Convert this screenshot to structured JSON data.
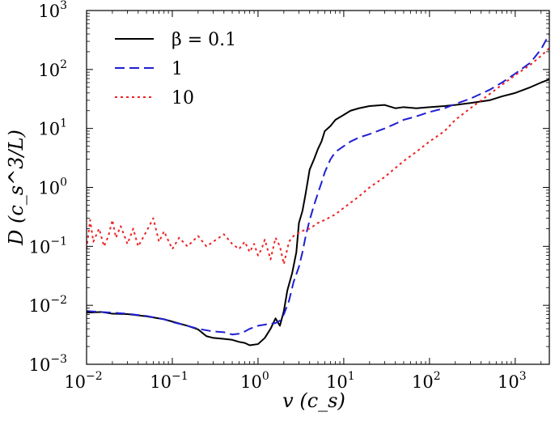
{
  "chart_data": {
    "type": "line",
    "title": "",
    "xscale": "log",
    "yscale": "log",
    "xlim": [
      0.01,
      2500
    ],
    "ylim": [
      0.001,
      1000
    ],
    "xlabel": "v (c_s)",
    "ylabel": "D (c_s^3/L)",
    "xticks": [
      {
        "base": "10",
        "exp": "−2",
        "value": 0.01
      },
      {
        "base": "10",
        "exp": "−1",
        "value": 0.1
      },
      {
        "base": "10",
        "exp": "0",
        "value": 1
      },
      {
        "base": "10",
        "exp": "1",
        "value": 10
      },
      {
        "base": "10",
        "exp": "2",
        "value": 100
      },
      {
        "base": "10",
        "exp": "3",
        "value": 1000
      }
    ],
    "yticks": [
      {
        "base": "10",
        "exp": "−3",
        "value": 0.001
      },
      {
        "base": "10",
        "exp": "−2",
        "value": 0.01
      },
      {
        "base": "10",
        "exp": "−1",
        "value": 0.1
      },
      {
        "base": "10",
        "exp": "0",
        "value": 1
      },
      {
        "base": "10",
        "exp": "1",
        "value": 10
      },
      {
        "base": "10",
        "exp": "2",
        "value": 100
      },
      {
        "base": "10",
        "exp": "3",
        "value": 1000
      }
    ],
    "legend_position": "top-left",
    "series": [
      {
        "name": "β = 0.1",
        "color": "#000000",
        "dash": "solid",
        "points": [
          [
            0.01,
            0.0075
          ],
          [
            0.015,
            0.0077
          ],
          [
            0.02,
            0.0072
          ],
          [
            0.03,
            0.0071
          ],
          [
            0.05,
            0.0065
          ],
          [
            0.08,
            0.0058
          ],
          [
            0.1,
            0.0053
          ],
          [
            0.15,
            0.0045
          ],
          [
            0.2,
            0.0039
          ],
          [
            0.25,
            0.003
          ],
          [
            0.3,
            0.0028
          ],
          [
            0.4,
            0.0027
          ],
          [
            0.5,
            0.0026
          ],
          [
            0.6,
            0.0024
          ],
          [
            0.7,
            0.0023
          ],
          [
            0.8,
            0.0021
          ],
          [
            1.0,
            0.0022
          ],
          [
            1.2,
            0.0028
          ],
          [
            1.4,
            0.004
          ],
          [
            1.6,
            0.006
          ],
          [
            1.8,
            0.0045
          ],
          [
            2.0,
            0.008
          ],
          [
            2.2,
            0.018
          ],
          [
            2.5,
            0.035
          ],
          [
            2.8,
            0.08
          ],
          [
            3.0,
            0.25
          ],
          [
            3.3,
            0.4
          ],
          [
            3.6,
            0.8
          ],
          [
            4.0,
            2.0
          ],
          [
            4.5,
            3.0
          ],
          [
            5.0,
            4.5
          ],
          [
            5.5,
            6.0
          ],
          [
            6.0,
            9.0
          ],
          [
            7.0,
            11.0
          ],
          [
            8.0,
            14.0
          ],
          [
            10,
            17.0
          ],
          [
            12,
            20.0
          ],
          [
            15,
            22.0
          ],
          [
            20,
            24.0
          ],
          [
            30,
            25.0
          ],
          [
            40,
            22.0
          ],
          [
            50,
            23.0
          ],
          [
            70,
            22.0
          ],
          [
            100,
            23.0
          ],
          [
            150,
            24.0
          ],
          [
            200,
            25.0
          ],
          [
            300,
            27.0
          ],
          [
            500,
            30.0
          ],
          [
            700,
            35.0
          ],
          [
            1000,
            40.0
          ],
          [
            1500,
            50.0
          ],
          [
            2000,
            60.0
          ],
          [
            2500,
            68.0
          ]
        ]
      },
      {
        "name": "1",
        "color": "#1f1fd4",
        "dash": "dashed",
        "points": [
          [
            0.01,
            0.008
          ],
          [
            0.02,
            0.0075
          ],
          [
            0.03,
            0.0072
          ],
          [
            0.05,
            0.0066
          ],
          [
            0.08,
            0.0058
          ],
          [
            0.1,
            0.0052
          ],
          [
            0.15,
            0.0045
          ],
          [
            0.2,
            0.004
          ],
          [
            0.3,
            0.0036
          ],
          [
            0.4,
            0.0035
          ],
          [
            0.5,
            0.0032
          ],
          [
            0.6,
            0.0033
          ],
          [
            0.7,
            0.0036
          ],
          [
            0.8,
            0.004
          ],
          [
            1.0,
            0.0045
          ],
          [
            1.3,
            0.0048
          ],
          [
            1.6,
            0.005
          ],
          [
            1.8,
            0.0055
          ],
          [
            2.0,
            0.007
          ],
          [
            2.3,
            0.012
          ],
          [
            2.6,
            0.025
          ],
          [
            3.0,
            0.045
          ],
          [
            3.3,
            0.08
          ],
          [
            3.6,
            0.15
          ],
          [
            4.0,
            0.28
          ],
          [
            4.5,
            0.5
          ],
          [
            5.0,
            0.8
          ],
          [
            5.5,
            1.2
          ],
          [
            6.0,
            1.8
          ],
          [
            7.0,
            3.0
          ],
          [
            8.0,
            4.0
          ],
          [
            10,
            5.0
          ],
          [
            12,
            6.0
          ],
          [
            15,
            7.0
          ],
          [
            20,
            8.0
          ],
          [
            30,
            10.0
          ],
          [
            40,
            12.0
          ],
          [
            50,
            14.0
          ],
          [
            70,
            16.0
          ],
          [
            100,
            19.0
          ],
          [
            150,
            22.0
          ],
          [
            200,
            26.0
          ],
          [
            300,
            32.0
          ],
          [
            500,
            45.0
          ],
          [
            700,
            60.0
          ],
          [
            1000,
            85.0
          ],
          [
            1500,
            130.0
          ],
          [
            2000,
            220.0
          ],
          [
            2500,
            400.0
          ]
        ]
      },
      {
        "name": "10",
        "color": "#ee2222",
        "dash": "dotted",
        "points": [
          [
            0.01,
            0.09
          ],
          [
            0.011,
            0.28
          ],
          [
            0.012,
            0.12
          ],
          [
            0.014,
            0.2
          ],
          [
            0.016,
            0.1
          ],
          [
            0.018,
            0.15
          ],
          [
            0.02,
            0.28
          ],
          [
            0.022,
            0.14
          ],
          [
            0.025,
            0.22
          ],
          [
            0.03,
            0.11
          ],
          [
            0.035,
            0.2
          ],
          [
            0.04,
            0.1
          ],
          [
            0.05,
            0.18
          ],
          [
            0.06,
            0.3
          ],
          [
            0.07,
            0.12
          ],
          [
            0.08,
            0.18
          ],
          [
            0.1,
            0.09
          ],
          [
            0.12,
            0.14
          ],
          [
            0.15,
            0.1
          ],
          [
            0.2,
            0.15
          ],
          [
            0.25,
            0.1
          ],
          [
            0.3,
            0.12
          ],
          [
            0.4,
            0.16
          ],
          [
            0.5,
            0.11
          ],
          [
            0.6,
            0.09
          ],
          [
            0.7,
            0.12
          ],
          [
            0.8,
            0.08
          ],
          [
            0.9,
            0.11
          ],
          [
            1.0,
            0.07
          ],
          [
            1.1,
            0.09
          ],
          [
            1.2,
            0.13
          ],
          [
            1.4,
            0.06
          ],
          [
            1.6,
            0.14
          ],
          [
            1.8,
            0.1
          ],
          [
            2.0,
            0.05
          ],
          [
            2.3,
            0.12
          ],
          [
            2.6,
            0.15
          ],
          [
            3.0,
            0.17
          ],
          [
            3.5,
            0.19
          ],
          [
            4.0,
            0.2
          ],
          [
            5.0,
            0.25
          ],
          [
            6.0,
            0.28
          ],
          [
            8.0,
            0.35
          ],
          [
            10,
            0.45
          ],
          [
            15,
            0.7
          ],
          [
            20,
            1.0
          ],
          [
            30,
            1.5
          ],
          [
            50,
            2.8
          ],
          [
            70,
            4.0
          ],
          [
            100,
            6.0
          ],
          [
            150,
            9.0
          ],
          [
            200,
            14.0
          ],
          [
            300,
            22.0
          ],
          [
            500,
            38.0
          ],
          [
            700,
            55.0
          ],
          [
            1000,
            80.0
          ],
          [
            1500,
            120.0
          ],
          [
            2000,
            170.0
          ],
          [
            2500,
            230.0
          ]
        ]
      }
    ]
  }
}
